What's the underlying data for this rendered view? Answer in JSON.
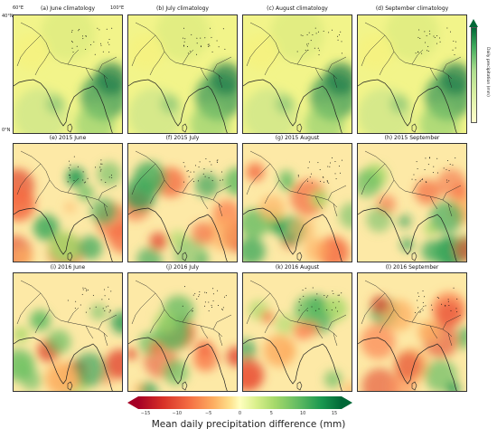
{
  "panels": [
    {
      "title": "(a) June climatology"
    },
    {
      "title": "(b) July climatology"
    },
    {
      "title": "(c) August climatology"
    },
    {
      "title": "(d) September climatology"
    },
    {
      "title": "(e) 2015 June"
    },
    {
      "title": "(f) 2015 July"
    },
    {
      "title": "(g) 2015 August"
    },
    {
      "title": "(h) 2015 September"
    },
    {
      "title": "(i) 2016 June"
    },
    {
      "title": "(j) 2016 July"
    },
    {
      "title": "(k) 2016 August"
    },
    {
      "title": "(l) 2016 September"
    }
  ],
  "axis_labels": {
    "lon_left": "60°E",
    "lon_right": "100°E",
    "lat_top": "40°N",
    "lat_bottom": "0°N"
  },
  "climatology_colorbar": {
    "label": "Daily precipitation (mm)",
    "ticks": [
      "",
      "",
      "",
      "",
      "",
      "",
      ""
    ]
  },
  "difference_colorbar": {
    "label": "Mean daily precipitation difference (mm)",
    "ticks": [
      "−15",
      "−10",
      "−5",
      "0",
      "5",
      "10",
      "15"
    ],
    "min": -15,
    "max": 15
  },
  "colors": {
    "dry": "#d73027",
    "neutral": "#ffffbf",
    "wet": "#1a9850",
    "clim_low": "#f7fcb9",
    "clim_high": "#006837"
  }
}
